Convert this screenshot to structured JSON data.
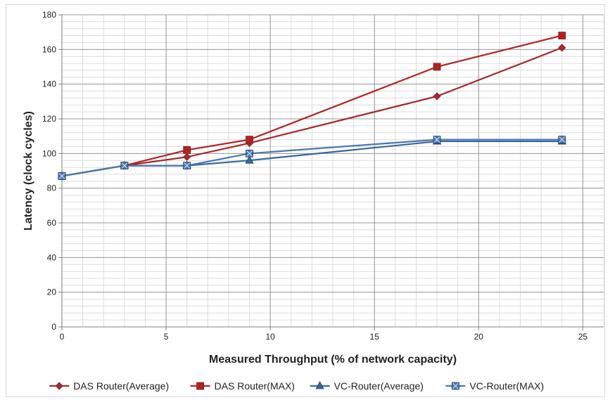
{
  "chart_data": {
    "type": "line",
    "title": "",
    "xlabel": "Measured Throughput (% of network capacity)",
    "ylabel": "Latency (clock cycles)",
    "xlim": [
      0,
      26
    ],
    "ylim": [
      0,
      180
    ],
    "x_ticks": [
      0,
      5,
      10,
      15,
      20,
      25
    ],
    "y_ticks": [
      0,
      20,
      40,
      60,
      80,
      100,
      120,
      140,
      160,
      180
    ],
    "grid": true,
    "legend_position": "bottom",
    "series": [
      {
        "name": "DAS Router(Average)",
        "color": "#a52a2a",
        "marker": "diamond",
        "x": [
          0,
          3,
          6,
          9,
          18,
          24
        ],
        "y": [
          87,
          93,
          98,
          106,
          133,
          161
        ]
      },
      {
        "name": "DAS Router(MAX)",
        "color": "#b22222",
        "marker": "square",
        "x": [
          0,
          3,
          6,
          9,
          18,
          24
        ],
        "y": [
          87,
          93,
          102,
          108,
          150,
          168
        ]
      },
      {
        "name": "VC-Router(Average)",
        "color": "#3a66a0",
        "marker": "triangle",
        "x": [
          0,
          3,
          6,
          9,
          18,
          24
        ],
        "y": [
          87,
          93,
          93,
          96,
          107,
          107
        ]
      },
      {
        "name": "VC-Router(MAX)",
        "color": "#4a78b0",
        "marker": "x-square",
        "x": [
          0,
          3,
          6,
          9,
          18,
          24
        ],
        "y": [
          87,
          93,
          93,
          100,
          108,
          108
        ]
      }
    ]
  }
}
